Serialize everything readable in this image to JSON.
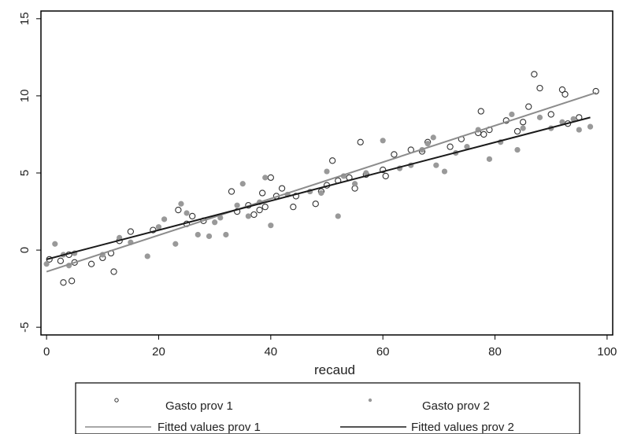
{
  "chart_data": {
    "type": "scatter",
    "title": "",
    "xlabel": "recaud",
    "ylabel": "",
    "xlim": [
      -1,
      101
    ],
    "ylim": [
      -5.5,
      15.5
    ],
    "xticks": [
      0,
      20,
      40,
      60,
      80,
      100
    ],
    "yticks": [
      -5,
      0,
      5,
      10,
      15
    ],
    "xtick_labels": [
      "0",
      "20",
      "40",
      "60",
      "80",
      "100"
    ],
    "ytick_labels": [
      "-5",
      "0",
      "5",
      "10",
      "15"
    ],
    "grid": false,
    "legend_position": "bottom",
    "series": [
      {
        "name": "Gasto prov 1",
        "kind": "scatter",
        "marker": "hollow-circle",
        "color": "#333333",
        "points": [
          [
            0.5,
            -0.6
          ],
          [
            2.5,
            -0.7
          ],
          [
            3,
            -2.1
          ],
          [
            4,
            -0.3
          ],
          [
            4.5,
            -2.0
          ],
          [
            5,
            -0.8
          ],
          [
            8,
            -0.9
          ],
          [
            10,
            -0.5
          ],
          [
            11.5,
            -0.2
          ],
          [
            12,
            -1.4
          ],
          [
            13,
            0.6
          ],
          [
            15,
            1.2
          ],
          [
            19,
            1.3
          ],
          [
            23.5,
            2.6
          ],
          [
            25,
            1.7
          ],
          [
            26,
            2.2
          ],
          [
            28,
            1.9
          ],
          [
            33,
            3.8
          ],
          [
            34,
            2.5
          ],
          [
            36,
            2.9
          ],
          [
            37,
            2.3
          ],
          [
            38,
            2.6
          ],
          [
            38.5,
            3.7
          ],
          [
            39,
            2.8
          ],
          [
            40,
            4.7
          ],
          [
            41,
            3.5
          ],
          [
            42,
            4.0
          ],
          [
            44,
            2.8
          ],
          [
            44.5,
            3.5
          ],
          [
            48,
            3.0
          ],
          [
            49,
            3.8
          ],
          [
            50,
            4.2
          ],
          [
            51,
            5.8
          ],
          [
            52,
            4.5
          ],
          [
            54,
            4.7
          ],
          [
            55,
            4.0
          ],
          [
            56,
            7.0
          ],
          [
            57,
            4.9
          ],
          [
            60,
            5.2
          ],
          [
            60.5,
            4.8
          ],
          [
            62,
            6.2
          ],
          [
            65,
            6.5
          ],
          [
            67,
            6.4
          ],
          [
            68,
            7.0
          ],
          [
            72,
            6.7
          ],
          [
            74,
            7.2
          ],
          [
            77,
            7.6
          ],
          [
            77.5,
            9.0
          ],
          [
            78,
            7.5
          ],
          [
            79,
            7.8
          ],
          [
            82,
            8.4
          ],
          [
            84,
            7.7
          ],
          [
            85,
            8.3
          ],
          [
            86,
            9.3
          ],
          [
            87,
            11.4
          ],
          [
            88,
            10.5
          ],
          [
            90,
            8.8
          ],
          [
            92,
            10.4
          ],
          [
            92.5,
            10.1
          ],
          [
            93,
            8.2
          ],
          [
            95,
            8.6
          ],
          [
            98,
            10.3
          ]
        ]
      },
      {
        "name": "Gasto prov 2",
        "kind": "scatter",
        "marker": "filled-circle",
        "color": "#999999",
        "points": [
          [
            0,
            -0.9
          ],
          [
            1.5,
            0.4
          ],
          [
            3,
            -0.3
          ],
          [
            4,
            -1.0
          ],
          [
            5,
            -0.2
          ],
          [
            10,
            -0.3
          ],
          [
            13,
            0.8
          ],
          [
            15,
            0.5
          ],
          [
            18,
            -0.4
          ],
          [
            20,
            1.5
          ],
          [
            21,
            2.0
          ],
          [
            23,
            0.4
          ],
          [
            24,
            3.0
          ],
          [
            25,
            2.4
          ],
          [
            27,
            1.0
          ],
          [
            29,
            0.9
          ],
          [
            30,
            1.8
          ],
          [
            31,
            2.1
          ],
          [
            32,
            1.0
          ],
          [
            34,
            2.9
          ],
          [
            35,
            4.3
          ],
          [
            36,
            2.2
          ],
          [
            38,
            3.1
          ],
          [
            39,
            4.7
          ],
          [
            40,
            1.6
          ],
          [
            43,
            3.6
          ],
          [
            47,
            3.8
          ],
          [
            49,
            3.7
          ],
          [
            50,
            5.1
          ],
          [
            52,
            2.2
          ],
          [
            53,
            4.8
          ],
          [
            55,
            4.3
          ],
          [
            57,
            5.0
          ],
          [
            60,
            7.1
          ],
          [
            63,
            5.3
          ],
          [
            65,
            5.5
          ],
          [
            67,
            6.5
          ],
          [
            68,
            6.9
          ],
          [
            69,
            7.3
          ],
          [
            69.5,
            5.5
          ],
          [
            71,
            5.1
          ],
          [
            73,
            6.3
          ],
          [
            75,
            6.7
          ],
          [
            77,
            7.8
          ],
          [
            79,
            5.9
          ],
          [
            81,
            7.0
          ],
          [
            83,
            8.8
          ],
          [
            84,
            6.5
          ],
          [
            85,
            7.9
          ],
          [
            88,
            8.6
          ],
          [
            90,
            7.9
          ],
          [
            92,
            8.3
          ],
          [
            94,
            8.5
          ],
          [
            95,
            7.8
          ],
          [
            97,
            8.0
          ]
        ]
      },
      {
        "name": "Fitted values prov 1",
        "kind": "line",
        "color": "#8c8c8c",
        "points": [
          [
            0,
            -1.4
          ],
          [
            98,
            10.2
          ]
        ]
      },
      {
        "name": "Fitted values prov 2",
        "kind": "line",
        "color": "#1a1a1a",
        "points": [
          [
            0,
            -0.6
          ],
          [
            97,
            8.6
          ]
        ]
      }
    ],
    "legend": [
      {
        "label": "Gasto prov 1",
        "symbol": "hollow-circle"
      },
      {
        "label": "Gasto prov 2",
        "symbol": "filled-circle"
      },
      {
        "label": "Fitted values prov 1",
        "symbol": "line-light"
      },
      {
        "label": "Fitted values prov 2",
        "symbol": "line-dark"
      }
    ]
  }
}
